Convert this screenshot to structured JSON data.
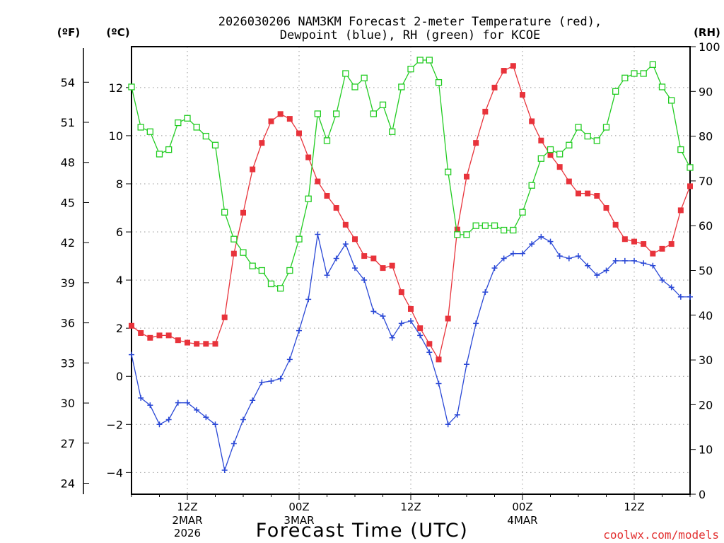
{
  "chart_data": {
    "type": "line",
    "title_line1": "2026030206 NAM3KM Forecast 2-meter Temperature (red),",
    "title_line2": "Dewpoint (blue), RH (green) for KCOE",
    "xlabel": "Forecast Time (UTC)",
    "credit": "coolwx.com/models",
    "axis_units": {
      "left_outer": "(ºF)",
      "left_inner": "(ºC)",
      "right": "(RH)"
    },
    "x_hours_range": [
      0,
      60
    ],
    "x_ticks": [
      {
        "hour": 6,
        "label": "12Z",
        "sub1": "2MAR",
        "sub2": "2026"
      },
      {
        "hour": 18,
        "label": "00Z",
        "sub1": "3MAR",
        "sub2": ""
      },
      {
        "hour": 30,
        "label": "12Z",
        "sub1": "",
        "sub2": ""
      },
      {
        "hour": 42,
        "label": "00Z",
        "sub1": "4MAR",
        "sub2": ""
      },
      {
        "hour": 54,
        "label": "12Z",
        "sub1": "",
        "sub2": ""
      }
    ],
    "celsius_range": [
      -4.9,
      13.7
    ],
    "celsius_ticks": [
      "−4",
      "−2",
      "0",
      "2",
      "4",
      "6",
      "8",
      "10",
      "12"
    ],
    "fahrenheit_ticks": [
      "24",
      "27",
      "30",
      "33",
      "36",
      "39",
      "42",
      "45",
      "48",
      "51",
      "54"
    ],
    "rh_range": [
      0,
      100
    ],
    "rh_ticks": [
      "0",
      "10",
      "20",
      "30",
      "40",
      "50",
      "60",
      "70",
      "80",
      "90",
      "100"
    ],
    "series": [
      {
        "name": "2-meter Temperature",
        "unit": "C",
        "color": "#e8333b",
        "marker": "filled-square",
        "values": [
          2.1,
          1.8,
          1.6,
          1.7,
          1.7,
          1.5,
          1.4,
          1.35,
          1.35,
          1.35,
          2.45,
          5.1,
          6.8,
          8.6,
          9.7,
          10.6,
          10.9,
          10.7,
          10.1,
          9.1,
          8.1,
          7.5,
          7.0,
          6.3,
          5.7,
          5.0,
          4.9,
          4.5,
          4.6,
          3.5,
          2.8,
          2.0,
          1.35,
          0.7,
          2.4,
          6.1,
          8.3,
          9.7,
          11.0,
          12.0,
          12.7,
          12.9,
          11.7,
          10.6,
          9.8,
          9.2,
          8.7,
          8.1,
          7.6,
          7.6,
          7.5,
          7.0,
          6.3,
          5.7,
          5.6,
          5.5,
          5.1,
          5.3,
          5.5,
          6.9,
          7.9
        ]
      },
      {
        "name": "Dewpoint",
        "unit": "C",
        "color": "#2a48d6",
        "marker": "plus",
        "values": [
          0.9,
          -0.9,
          -1.2,
          -2.0,
          -1.8,
          -1.1,
          -1.1,
          -1.4,
          -1.7,
          -2.0,
          -3.9,
          -2.8,
          -1.8,
          -1.0,
          -0.25,
          -0.2,
          -0.1,
          0.7,
          1.9,
          3.2,
          5.9,
          4.2,
          4.9,
          5.5,
          4.5,
          4.0,
          2.7,
          2.5,
          1.6,
          2.2,
          2.3,
          1.7,
          1.0,
          -0.3,
          -2.0,
          -1.6,
          0.5,
          2.2,
          3.5,
          4.5,
          4.9,
          5.1,
          5.1,
          5.5,
          5.8,
          5.6,
          5.0,
          4.9,
          5.0,
          4.6,
          4.2,
          4.4,
          4.8,
          4.8,
          4.8,
          4.7,
          4.6,
          4.0,
          3.7,
          3.3,
          3.3
        ]
      },
      {
        "name": "RH",
        "unit": "%",
        "color": "#22cc22",
        "marker": "open-square",
        "values": [
          91,
          82,
          81,
          76,
          77,
          83,
          84,
          82,
          80,
          78,
          63,
          57,
          54,
          51,
          50,
          47,
          46,
          50,
          57,
          66,
          85,
          79,
          85,
          94,
          91,
          93,
          85,
          87,
          81,
          91,
          95,
          97,
          97,
          92,
          72,
          58,
          58,
          60,
          60,
          60,
          59,
          59,
          63,
          69,
          75,
          77,
          76,
          78,
          82,
          80,
          79,
          82,
          90,
          93,
          94,
          94,
          96,
          91,
          88,
          77,
          73
        ]
      }
    ]
  }
}
